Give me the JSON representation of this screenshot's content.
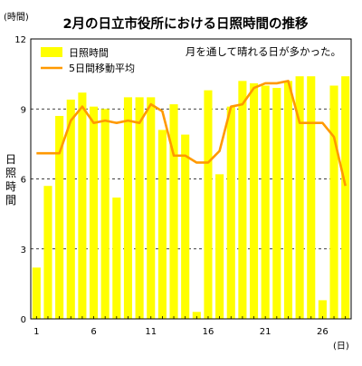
{
  "chart_data": {
    "type": "bar",
    "title": "2月の日立市役所における日照時間の推移",
    "ylabel_top": "(時間)",
    "ylabel_side": "日照時間",
    "xlabel_unit": "(日)",
    "annotation": "月を通して晴れる日が多かった。",
    "ylim": [
      0,
      12
    ],
    "yticks": [
      0,
      3,
      6,
      9,
      12
    ],
    "xtick_labels": [
      "1",
      "6",
      "11",
      "16",
      "21",
      "26"
    ],
    "grid": "horizontal dashed",
    "legend_position": "top-left",
    "x": [
      1,
      2,
      3,
      4,
      5,
      6,
      7,
      8,
      9,
      10,
      11,
      12,
      13,
      14,
      15,
      16,
      17,
      18,
      19,
      20,
      21,
      22,
      23,
      24,
      25,
      26,
      27,
      28
    ],
    "series": [
      {
        "name": "日照時間",
        "type": "bar",
        "values": [
          2.2,
          5.7,
          8.7,
          9.4,
          9.7,
          9.1,
          9.0,
          5.2,
          9.5,
          9.5,
          9.5,
          8.1,
          9.2,
          7.9,
          0.3,
          9.8,
          6.2,
          9.1,
          10.2,
          10.1,
          10.0,
          9.9,
          10.2,
          10.4,
          10.4,
          0.8,
          10.0,
          10.4
        ]
      },
      {
        "name": "5日間移動平均",
        "type": "line",
        "values": [
          7.1,
          7.1,
          7.1,
          8.5,
          9.1,
          8.4,
          8.5,
          8.4,
          8.5,
          8.4,
          9.2,
          8.9,
          7.0,
          7.0,
          6.7,
          6.7,
          7.2,
          9.1,
          9.2,
          9.9,
          10.1,
          10.1,
          10.2,
          8.4,
          8.4,
          8.4,
          7.8,
          5.7
        ]
      }
    ],
    "colors": {
      "bar": "#ffff00",
      "line": "#ff9900"
    }
  }
}
